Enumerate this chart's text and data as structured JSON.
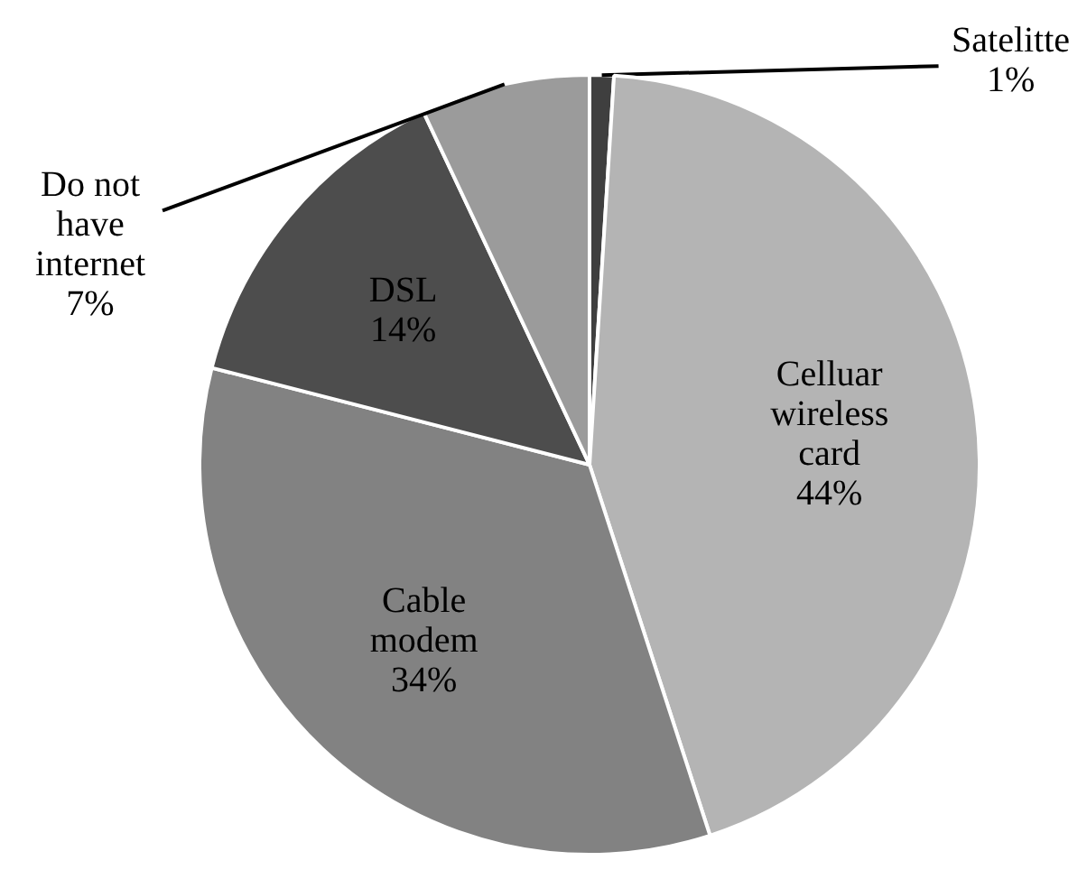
{
  "chart_data": {
    "type": "pie",
    "categories": [
      "Satelitte",
      "Celluar wireless card",
      "Cable modem",
      "DSL",
      "Do not have internet"
    ],
    "values": [
      1,
      44,
      34,
      14,
      7
    ],
    "value_labels": [
      "1%",
      "44%",
      "34%",
      "14%",
      "7%"
    ],
    "colors": [
      "#3f3f3f",
      "#b4b4b4",
      "#828282",
      "#4d4d4d",
      "#9b9b9b"
    ]
  }
}
